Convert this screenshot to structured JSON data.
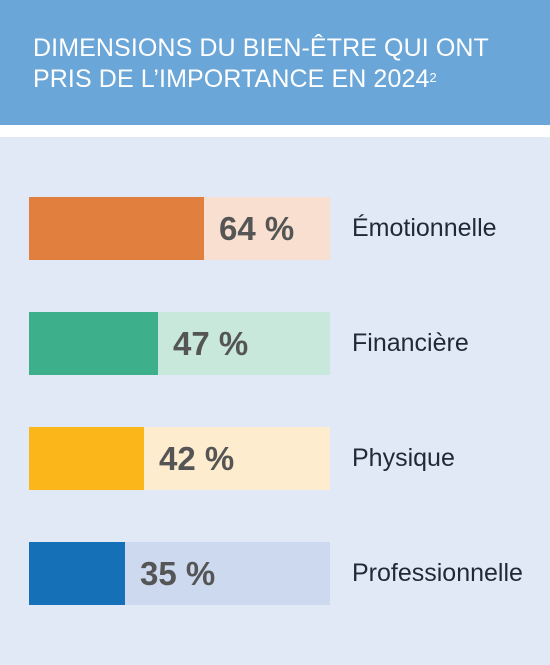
{
  "header": {
    "title": "DIMENSIONS DU BIEN-ÊTRE QUI ONT PRIS DE L’IMPORTANCE EN 2024",
    "footnote": "2"
  },
  "chart_data": {
    "type": "bar",
    "orientation": "horizontal",
    "title": "DIMENSIONS DU BIEN-ÊTRE QUI ONT PRIS DE L’IMPORTANCE EN 2024",
    "categories": [
      "Émotionnelle",
      "Financière",
      "Physique",
      "Professionnelle"
    ],
    "values": [
      64,
      47,
      42,
      35
    ],
    "value_labels": [
      "64 %",
      "47 %",
      "42 %",
      "35 %"
    ],
    "xlim": [
      0,
      110
    ],
    "unit": "%",
    "grid": false,
    "legend": "none",
    "colors": [
      "#e07f3e",
      "#3daf8b",
      "#fbb619",
      "#1670b8"
    ],
    "track_colors": [
      "#f8dfd0",
      "#c7e8db",
      "#fdeccd",
      "#cdd9ee"
    ]
  }
}
